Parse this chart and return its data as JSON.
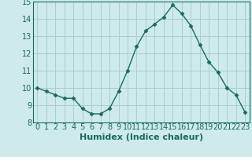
{
  "x": [
    0,
    1,
    2,
    3,
    4,
    5,
    6,
    7,
    8,
    9,
    10,
    11,
    12,
    13,
    14,
    15,
    16,
    17,
    18,
    19,
    20,
    21,
    22,
    23
  ],
  "y": [
    10.0,
    9.8,
    9.6,
    9.4,
    9.4,
    8.8,
    8.5,
    8.5,
    8.8,
    9.8,
    11.0,
    12.4,
    13.3,
    13.7,
    14.1,
    14.8,
    14.3,
    13.6,
    12.5,
    11.5,
    10.9,
    10.0,
    9.6,
    8.6
  ],
  "xlabel": "Humidex (Indice chaleur)",
  "ylim": [
    8,
    15
  ],
  "xlim": [
    -0.5,
    23.5
  ],
  "yticks": [
    8,
    9,
    10,
    11,
    12,
    13,
    14,
    15
  ],
  "xticks": [
    0,
    1,
    2,
    3,
    4,
    5,
    6,
    7,
    8,
    9,
    10,
    11,
    12,
    13,
    14,
    15,
    16,
    17,
    18,
    19,
    20,
    21,
    22,
    23
  ],
  "line_color": "#1a6b5a",
  "marker": "D",
  "marker_size": 2.5,
  "bg_color": "#ceeaea",
  "grid_color": "#aacfcf",
  "xlabel_fontsize": 8,
  "tick_fontsize": 7
}
